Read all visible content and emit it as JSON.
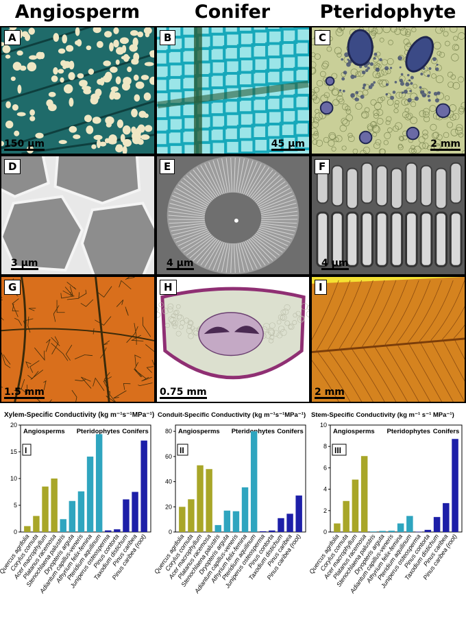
{
  "columns": [
    "Angiosperm",
    "Conifer",
    "Pteridophyte"
  ],
  "panels": {
    "A": {
      "label": "A",
      "scale": "150 μm"
    },
    "B": {
      "label": "B",
      "scale": "45 μm"
    },
    "C": {
      "label": "C",
      "scale": "2 mm"
    },
    "D": {
      "label": "D",
      "scale": "3 μm"
    },
    "E": {
      "label": "E",
      "scale": "4 μm"
    },
    "F": {
      "label": "F",
      "scale": "4 μm"
    },
    "G": {
      "label": "G",
      "scale": "1.5 mm"
    },
    "H": {
      "label": "H",
      "scale": "0.75 mm"
    },
    "I": {
      "label": "I",
      "scale": "2 mm"
    }
  },
  "chart_data": [
    {
      "type": "bar",
      "title": "Xylem-Specific Conductivity (kg m⁻¹s⁻¹MPa⁻¹)",
      "panel_label": "I",
      "group_labels": [
        "Angiosperms",
        "Pteridophytes",
        "Conifers"
      ],
      "categories": [
        "Quercus agrifolia",
        "Corylus cornuta",
        "Acer macrophyllum",
        "Platanus racemosa",
        "Stenochlaena palustris",
        "Dryopteris arguta",
        "Adiantum capillus-veneris",
        "Athyrium felix-femina",
        "Pteridium aquilinum",
        "Juniperus osteosperma",
        "Pinus contorta",
        "Taxodium distichum",
        "Pinus caribea",
        "Pinus caribea (root)"
      ],
      "values": [
        1.1,
        3.0,
        8.5,
        10.0,
        2.4,
        5.8,
        7.6,
        14.1,
        18.3,
        0.3,
        0.5,
        6.1,
        7.5,
        17.1
      ],
      "ylim": [
        0,
        20
      ],
      "yticks": [
        0,
        5,
        10,
        15,
        20
      ]
    },
    {
      "type": "bar",
      "title": "Conduit-Specific Conductivity (kg m⁻¹s⁻¹MPa⁻¹)",
      "panel_label": "II",
      "group_labels": [
        "Angiosperms",
        "Pteridophytes",
        "Conifers"
      ],
      "categories": [
        "Quercus agrifolia",
        "Corylus cornuta",
        "Acer macrophyllum",
        "Platanus racemosa",
        "Stenochlaena palustris",
        "Dryopteris arguta",
        "Adiantum capillus-veneris",
        "Athyrium felix-femina",
        "Pteridium aquilinum",
        "Juniperus osteosperma",
        "Pinus contorta",
        "Taxodium distichum",
        "Pinus caribea",
        "Pinus caribea (root)"
      ],
      "values": [
        20,
        26,
        53,
        50,
        5.5,
        17,
        16.5,
        35.5,
        80,
        0.6,
        1.2,
        11,
        14.5,
        29
      ],
      "ylim": [
        0,
        85
      ],
      "yticks": [
        0,
        20,
        40,
        60,
        80
      ]
    },
    {
      "type": "bar",
      "title": "Stem-Specific Conductivity (kg m⁻¹ s⁻¹ MPa⁻¹)",
      "panel_label": "III",
      "group_labels": [
        "Angiosperms",
        "Pteridophytes",
        "Conifers"
      ],
      "categories": [
        "Quercus agrifolia",
        "Corylus cornuta",
        "Acer macrophyllum",
        "Platanus racemosa",
        "Stenochlaena palustris",
        "Dryopteris arguta",
        "Adiantum capillus-veneris",
        "Athyrium felix-femina",
        "Pteridium aquilinum",
        "Juniperus osteosperma",
        "Pinus contorta",
        "Taxodium distichum",
        "Pinus caribea",
        "Pinus caribea (root)"
      ],
      "values": [
        0.8,
        2.9,
        4.9,
        7.1,
        0.05,
        0.1,
        0.12,
        0.8,
        1.5,
        0.03,
        0.2,
        1.4,
        2.7,
        8.7
      ],
      "ylim": [
        0,
        10
      ],
      "yticks": [
        0,
        2,
        4,
        6,
        8,
        10
      ]
    }
  ],
  "colors": {
    "angiosperm": "#a8a628",
    "pteridophyte": "#2fa5bf",
    "conifer": "#1d1fa8"
  }
}
